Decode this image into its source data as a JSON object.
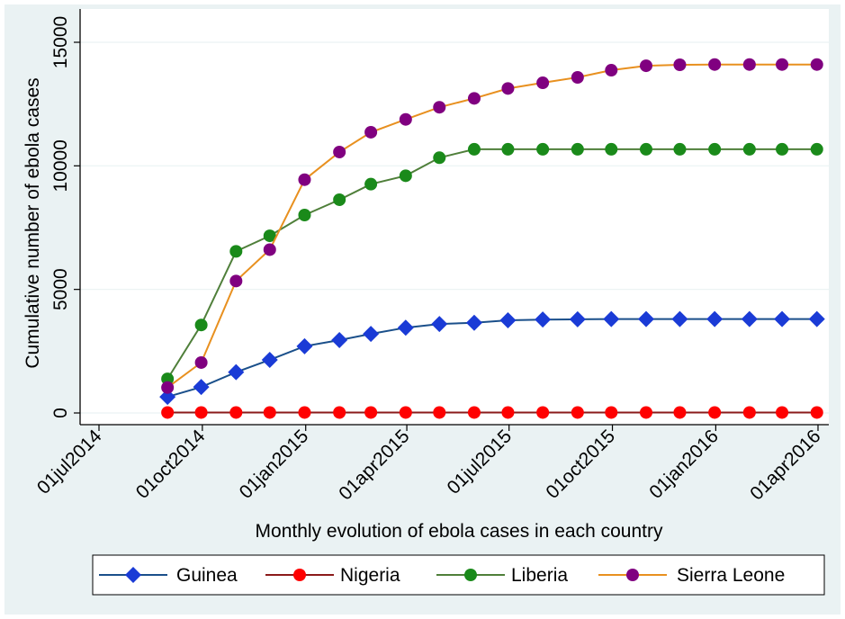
{
  "chart_data": {
    "type": "line",
    "title": "",
    "xlabel": "Monthly evolution of ebola cases in each country",
    "ylabel": "Cumulative number of ebola cases",
    "ylim": [
      0,
      15000
    ],
    "xlim": [
      "2014-07-01",
      "2016-04-01"
    ],
    "y_ticks": [
      0,
      5000,
      10000,
      15000
    ],
    "x_ticks": [
      {
        "date": "2014-07-01",
        "label": "01jul2014"
      },
      {
        "date": "2014-10-01",
        "label": "01oct2014"
      },
      {
        "date": "2015-01-01",
        "label": "01jan2015"
      },
      {
        "date": "2015-04-01",
        "label": "01apr2015"
      },
      {
        "date": "2015-07-01",
        "label": "01jul2015"
      },
      {
        "date": "2015-10-01",
        "label": "01oct2015"
      },
      {
        "date": "2016-01-01",
        "label": "01jan2016"
      },
      {
        "date": "2016-04-01",
        "label": "01apr2016"
      }
    ],
    "grid": true,
    "legend_position": "bottom",
    "x": [
      "2014-08-31",
      "2014-09-30",
      "2014-10-31",
      "2014-11-30",
      "2014-12-31",
      "2015-01-31",
      "2015-02-28",
      "2015-03-31",
      "2015-04-30",
      "2015-05-31",
      "2015-06-30",
      "2015-07-31",
      "2015-08-31",
      "2015-09-30",
      "2015-10-31",
      "2015-11-30",
      "2015-12-31",
      "2016-01-31",
      "2016-02-29",
      "2016-03-31"
    ],
    "series": [
      {
        "name": "Guinea",
        "color": "#1a3bd6",
        "marker": "diamond",
        "line_color": "#1a4f8a",
        "values": [
          650,
          1050,
          1650,
          2150,
          2700,
          2950,
          3200,
          3450,
          3600,
          3650,
          3750,
          3780,
          3790,
          3800,
          3800,
          3800,
          3800,
          3800,
          3800,
          3800
        ]
      },
      {
        "name": "Nigeria",
        "color": "#ff0000",
        "marker": "circle",
        "line_color": "#8b1a1a",
        "values": [
          20,
          20,
          20,
          20,
          20,
          20,
          20,
          20,
          20,
          20,
          20,
          20,
          20,
          20,
          20,
          20,
          20,
          20,
          20,
          20
        ]
      },
      {
        "name": "Liberia",
        "color": "#1a8a1a",
        "marker": "circle",
        "line_color": "#4f7f3a",
        "values": [
          1380,
          3560,
          6540,
          7170,
          8010,
          8630,
          9260,
          9600,
          10330,
          10670,
          10670,
          10670,
          10670,
          10670,
          10670,
          10670,
          10670,
          10670,
          10670,
          10670
        ]
      },
      {
        "name": "Sierra Leone",
        "color": "#800080",
        "marker": "circle",
        "line_color": "#e8901f",
        "values": [
          1030,
          2040,
          5340,
          6610,
          9440,
          10560,
          11360,
          11880,
          12370,
          12730,
          13130,
          13360,
          13580,
          13870,
          14050,
          14090,
          14100,
          14100,
          14100,
          14100
        ]
      }
    ]
  }
}
